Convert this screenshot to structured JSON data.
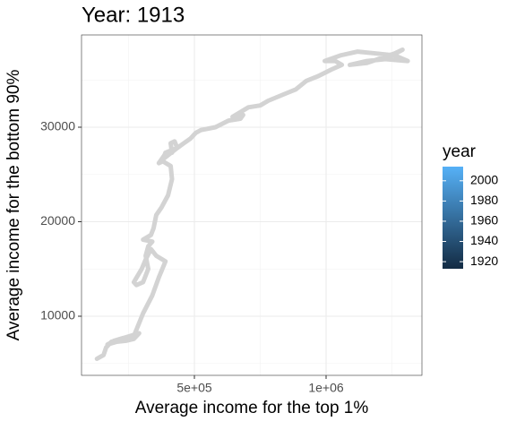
{
  "chart_data": {
    "type": "line",
    "title": "Year: 1913",
    "xlabel": "Average income for the top 1%",
    "ylabel": "Average income for the bottom 90%",
    "x": [
      130000,
      155000,
      165000,
      185000,
      220000,
      255000,
      290000,
      270000,
      240000,
      205000,
      170000,
      195000,
      230000,
      270000,
      305000,
      340000,
      365000,
      390000,
      355000,
      335000,
      315000,
      300000,
      270000,
      280000,
      305000,
      325000,
      315000,
      325000,
      340000,
      305000,
      335000,
      345000,
      355000,
      375000,
      400000,
      415000,
      410000,
      380000,
      365000,
      390000,
      415000,
      410000,
      425000,
      435000,
      390000,
      380000,
      435000,
      460000,
      485000,
      505000,
      525000,
      580000,
      630000,
      675000,
      685000,
      645000,
      705000,
      750000,
      780000,
      850000,
      885000,
      925000,
      970000,
      1020000,
      1060000,
      1035000,
      995000,
      1055000,
      1120000,
      1190000,
      1260000,
      1310000,
      1225000,
      1155000,
      1090000,
      1155000,
      1260000,
      1290000,
      1225000,
      1310000
    ],
    "values": [
      5500,
      5900,
      6700,
      7300,
      7600,
      7900,
      8200,
      7600,
      7400,
      7300,
      7000,
      7400,
      7700,
      7900,
      10300,
      12200,
      14100,
      15800,
      16400,
      17100,
      16000,
      15000,
      13600,
      13300,
      13600,
      15000,
      16400,
      17400,
      17900,
      18100,
      18600,
      19300,
      20700,
      21500,
      22800,
      24500,
      25900,
      26400,
      26200,
      27200,
      27300,
      28300,
      28500,
      27800,
      27300,
      26600,
      27800,
      28300,
      28800,
      29400,
      29700,
      30000,
      30700,
      30900,
      31300,
      31100,
      32100,
      32300,
      32800,
      33600,
      34000,
      34900,
      35400,
      36100,
      36600,
      37000,
      37000,
      37600,
      38000,
      37800,
      37600,
      37000,
      37200,
      37000,
      36600,
      36800,
      37800,
      38200,
      37200,
      37000
    ],
    "color": "#d3d3d3",
    "xlim": [
      71429,
      1363946
    ],
    "ylim": [
      3744,
      39763
    ],
    "xticks": [
      {
        "value": 500000,
        "label": "5e+05"
      },
      {
        "value": 1000000,
        "label": "1e+06"
      }
    ],
    "yticks": [
      10000,
      20000,
      30000
    ],
    "x_minor_grid": [
      250000,
      750000,
      1250000
    ],
    "y_minor_grid": [
      5000,
      15000,
      25000,
      35000
    ],
    "grid": true,
    "legend": {
      "title": "year",
      "colorlim": [
        1913,
        2014
      ],
      "ticks": [
        1920,
        1940,
        1960,
        1980,
        2000
      ],
      "low": "#132B43",
      "high": "#56B1F7"
    }
  }
}
